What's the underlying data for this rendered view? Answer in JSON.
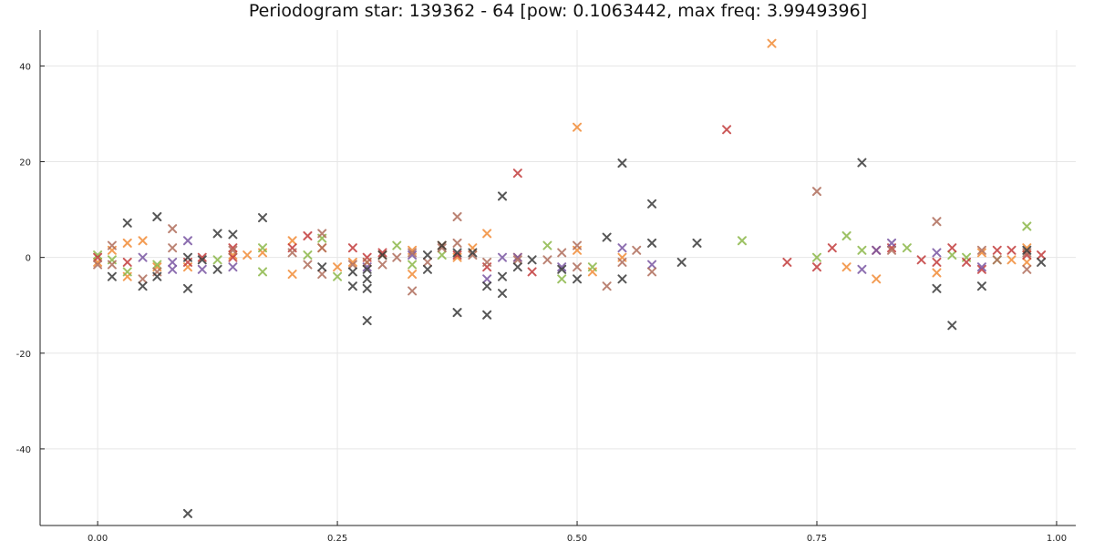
{
  "chart_data": {
    "type": "scatter",
    "title": "Periodogram star: 139362 - 64 [pow: 0.1063442, max freq: 3.9949396]",
    "xlabel": "",
    "ylabel": "",
    "xlim": [
      -0.06,
      1.02
    ],
    "ylim": [
      -56,
      47.5
    ],
    "marker": "x",
    "grid": true,
    "legend": "none",
    "x_ticks": [
      0.0,
      0.25,
      0.5,
      0.75,
      1.0
    ],
    "x_tick_labels": [
      "0.00",
      "0.25",
      "0.50",
      "0.75",
      "1.00"
    ],
    "y_ticks": [
      40,
      20,
      0,
      -20,
      -40
    ],
    "y_tick_labels": [
      "40",
      "20",
      "0",
      "-20",
      "-40"
    ],
    "colors": {
      "orange": "#f28c38",
      "green": "#8cb84a",
      "red": "#c23c3c",
      "purple": "#7a57a3",
      "brown": "#b06e5c",
      "dark": "#3a3a3a"
    },
    "series": [
      {
        "color": "#f28c38",
        "points": [
          [
            0.0,
            -1
          ],
          [
            0.015,
            1.5
          ],
          [
            0.031,
            3
          ],
          [
            0.031,
            -4
          ],
          [
            0.047,
            3.5
          ],
          [
            0.062,
            -2
          ],
          [
            0.094,
            -2
          ],
          [
            0.141,
            0.5
          ],
          [
            0.156,
            0.5
          ],
          [
            0.172,
            1
          ],
          [
            0.203,
            3.5
          ],
          [
            0.203,
            -3.5
          ],
          [
            0.234,
            2
          ],
          [
            0.25,
            -2
          ],
          [
            0.266,
            -1
          ],
          [
            0.281,
            -1
          ],
          [
            0.297,
            0.5
          ],
          [
            0.328,
            1.5
          ],
          [
            0.328,
            -3.5
          ],
          [
            0.359,
            2.5
          ],
          [
            0.375,
            0
          ],
          [
            0.391,
            2
          ],
          [
            0.406,
            5
          ],
          [
            0.438,
            0
          ],
          [
            0.5,
            27.2
          ],
          [
            0.5,
            1.5
          ],
          [
            0.516,
            -3
          ],
          [
            0.547,
            0
          ],
          [
            0.703,
            44.7
          ],
          [
            0.781,
            -2
          ],
          [
            0.812,
            -4.5
          ],
          [
            0.875,
            -3.2
          ],
          [
            0.922,
            1
          ],
          [
            0.953,
            -0.5
          ],
          [
            0.969,
            2
          ],
          [
            0.969,
            -1
          ]
        ]
      },
      {
        "color": "#8cb84a",
        "points": [
          [
            0.0,
            0.5
          ],
          [
            0.015,
            -0.5
          ],
          [
            0.031,
            -3
          ],
          [
            0.062,
            -1.5
          ],
          [
            0.125,
            -0.5
          ],
          [
            0.172,
            2
          ],
          [
            0.172,
            -3
          ],
          [
            0.219,
            0.5
          ],
          [
            0.234,
            4
          ],
          [
            0.25,
            -4
          ],
          [
            0.312,
            2.5
          ],
          [
            0.328,
            -1.5
          ],
          [
            0.359,
            0.5
          ],
          [
            0.469,
            2.5
          ],
          [
            0.484,
            -4.5
          ],
          [
            0.516,
            -2
          ],
          [
            0.672,
            3.5
          ],
          [
            0.75,
            0
          ],
          [
            0.781,
            4.5
          ],
          [
            0.797,
            1.5
          ],
          [
            0.844,
            2
          ],
          [
            0.891,
            0.5
          ],
          [
            0.906,
            0
          ],
          [
            0.938,
            -0.5
          ],
          [
            0.969,
            6.5
          ]
        ]
      },
      {
        "color": "#c23c3c",
        "points": [
          [
            0.0,
            0
          ],
          [
            0.031,
            -1
          ],
          [
            0.094,
            -1
          ],
          [
            0.109,
            0
          ],
          [
            0.141,
            2
          ],
          [
            0.141,
            0
          ],
          [
            0.203,
            2
          ],
          [
            0.219,
            4.5
          ],
          [
            0.266,
            2
          ],
          [
            0.281,
            0
          ],
          [
            0.297,
            1
          ],
          [
            0.375,
            0.5
          ],
          [
            0.406,
            -2
          ],
          [
            0.438,
            17.6
          ],
          [
            0.453,
            -3
          ],
          [
            0.656,
            26.7
          ],
          [
            0.719,
            -1
          ],
          [
            0.75,
            -2
          ],
          [
            0.766,
            2
          ],
          [
            0.812,
            1.5
          ],
          [
            0.828,
            2
          ],
          [
            0.859,
            -0.5
          ],
          [
            0.875,
            -1
          ],
          [
            0.891,
            2
          ],
          [
            0.906,
            -1
          ],
          [
            0.922,
            -2.5
          ],
          [
            0.938,
            1.5
          ],
          [
            0.953,
            1.5
          ],
          [
            0.969,
            0.5
          ],
          [
            0.984,
            0.5
          ]
        ]
      },
      {
        "color": "#7a57a3",
        "points": [
          [
            0.047,
            0
          ],
          [
            0.078,
            -1
          ],
          [
            0.078,
            -2.5
          ],
          [
            0.094,
            3.5
          ],
          [
            0.109,
            -2.5
          ],
          [
            0.141,
            -2
          ],
          [
            0.281,
            -2
          ],
          [
            0.328,
            0.5
          ],
          [
            0.406,
            -4.5
          ],
          [
            0.422,
            0
          ],
          [
            0.438,
            0
          ],
          [
            0.484,
            -2
          ],
          [
            0.547,
            2
          ],
          [
            0.578,
            -1.5
          ],
          [
            0.797,
            -2.5
          ],
          [
            0.812,
            1.5
          ],
          [
            0.828,
            3
          ],
          [
            0.875,
            1
          ],
          [
            0.922,
            -2
          ]
        ]
      },
      {
        "color": "#b06e5c",
        "points": [
          [
            0.0,
            -1.5
          ],
          [
            0.015,
            2.5
          ],
          [
            0.015,
            -1.5
          ],
          [
            0.047,
            -4.5
          ],
          [
            0.062,
            -3
          ],
          [
            0.078,
            6
          ],
          [
            0.078,
            2
          ],
          [
            0.141,
            1.5
          ],
          [
            0.203,
            1
          ],
          [
            0.219,
            -1.5
          ],
          [
            0.234,
            5
          ],
          [
            0.234,
            2
          ],
          [
            0.234,
            -3.5
          ],
          [
            0.266,
            -1.5
          ],
          [
            0.281,
            -1
          ],
          [
            0.297,
            -1.5
          ],
          [
            0.312,
            0
          ],
          [
            0.328,
            -7
          ],
          [
            0.328,
            1
          ],
          [
            0.344,
            -1
          ],
          [
            0.359,
            2
          ],
          [
            0.375,
            8.5
          ],
          [
            0.375,
            3
          ],
          [
            0.391,
            0.5
          ],
          [
            0.406,
            -1
          ],
          [
            0.438,
            -0.5
          ],
          [
            0.469,
            -0.5
          ],
          [
            0.484,
            1
          ],
          [
            0.5,
            -2
          ],
          [
            0.5,
            2.5
          ],
          [
            0.531,
            -6
          ],
          [
            0.547,
            -1
          ],
          [
            0.562,
            1.5
          ],
          [
            0.578,
            -3
          ],
          [
            0.75,
            13.8
          ],
          [
            0.828,
            1.5
          ],
          [
            0.875,
            7.5
          ],
          [
            0.922,
            1.5
          ],
          [
            0.938,
            -0.5
          ],
          [
            0.969,
            -2.5
          ],
          [
            0.969,
            1
          ]
        ]
      },
      {
        "color": "#3a3a3a",
        "points": [
          [
            0.015,
            -4
          ],
          [
            0.031,
            7.2
          ],
          [
            0.047,
            -6
          ],
          [
            0.062,
            8.5
          ],
          [
            0.062,
            -4
          ],
          [
            0.094,
            -53.5
          ],
          [
            0.094,
            -6.5
          ],
          [
            0.094,
            0
          ],
          [
            0.109,
            -0.5
          ],
          [
            0.125,
            5
          ],
          [
            0.125,
            -2.5
          ],
          [
            0.141,
            4.8
          ],
          [
            0.172,
            8.3
          ],
          [
            0.234,
            -2
          ],
          [
            0.266,
            -6
          ],
          [
            0.266,
            -3
          ],
          [
            0.281,
            -13.2
          ],
          [
            0.281,
            -6.5
          ],
          [
            0.281,
            -4.5
          ],
          [
            0.281,
            -2.5
          ],
          [
            0.297,
            0.5
          ],
          [
            0.344,
            -2.5
          ],
          [
            0.344,
            0.5
          ],
          [
            0.359,
            2.5
          ],
          [
            0.375,
            -11.5
          ],
          [
            0.375,
            1
          ],
          [
            0.391,
            1
          ],
          [
            0.406,
            -12
          ],
          [
            0.406,
            -6
          ],
          [
            0.422,
            12.8
          ],
          [
            0.422,
            -7.5
          ],
          [
            0.422,
            -4
          ],
          [
            0.438,
            -2
          ],
          [
            0.453,
            -0.5
          ],
          [
            0.484,
            -2.5
          ],
          [
            0.5,
            -4.5
          ],
          [
            0.531,
            4.2
          ],
          [
            0.547,
            19.7
          ],
          [
            0.547,
            -4.5
          ],
          [
            0.578,
            11.2
          ],
          [
            0.578,
            3
          ],
          [
            0.609,
            -1
          ],
          [
            0.625,
            3
          ],
          [
            0.797,
            19.8
          ],
          [
            0.875,
            -6.5
          ],
          [
            0.891,
            -14.2
          ],
          [
            0.922,
            -6
          ],
          [
            0.969,
            1.5
          ],
          [
            0.984,
            -1
          ]
        ]
      }
    ]
  }
}
